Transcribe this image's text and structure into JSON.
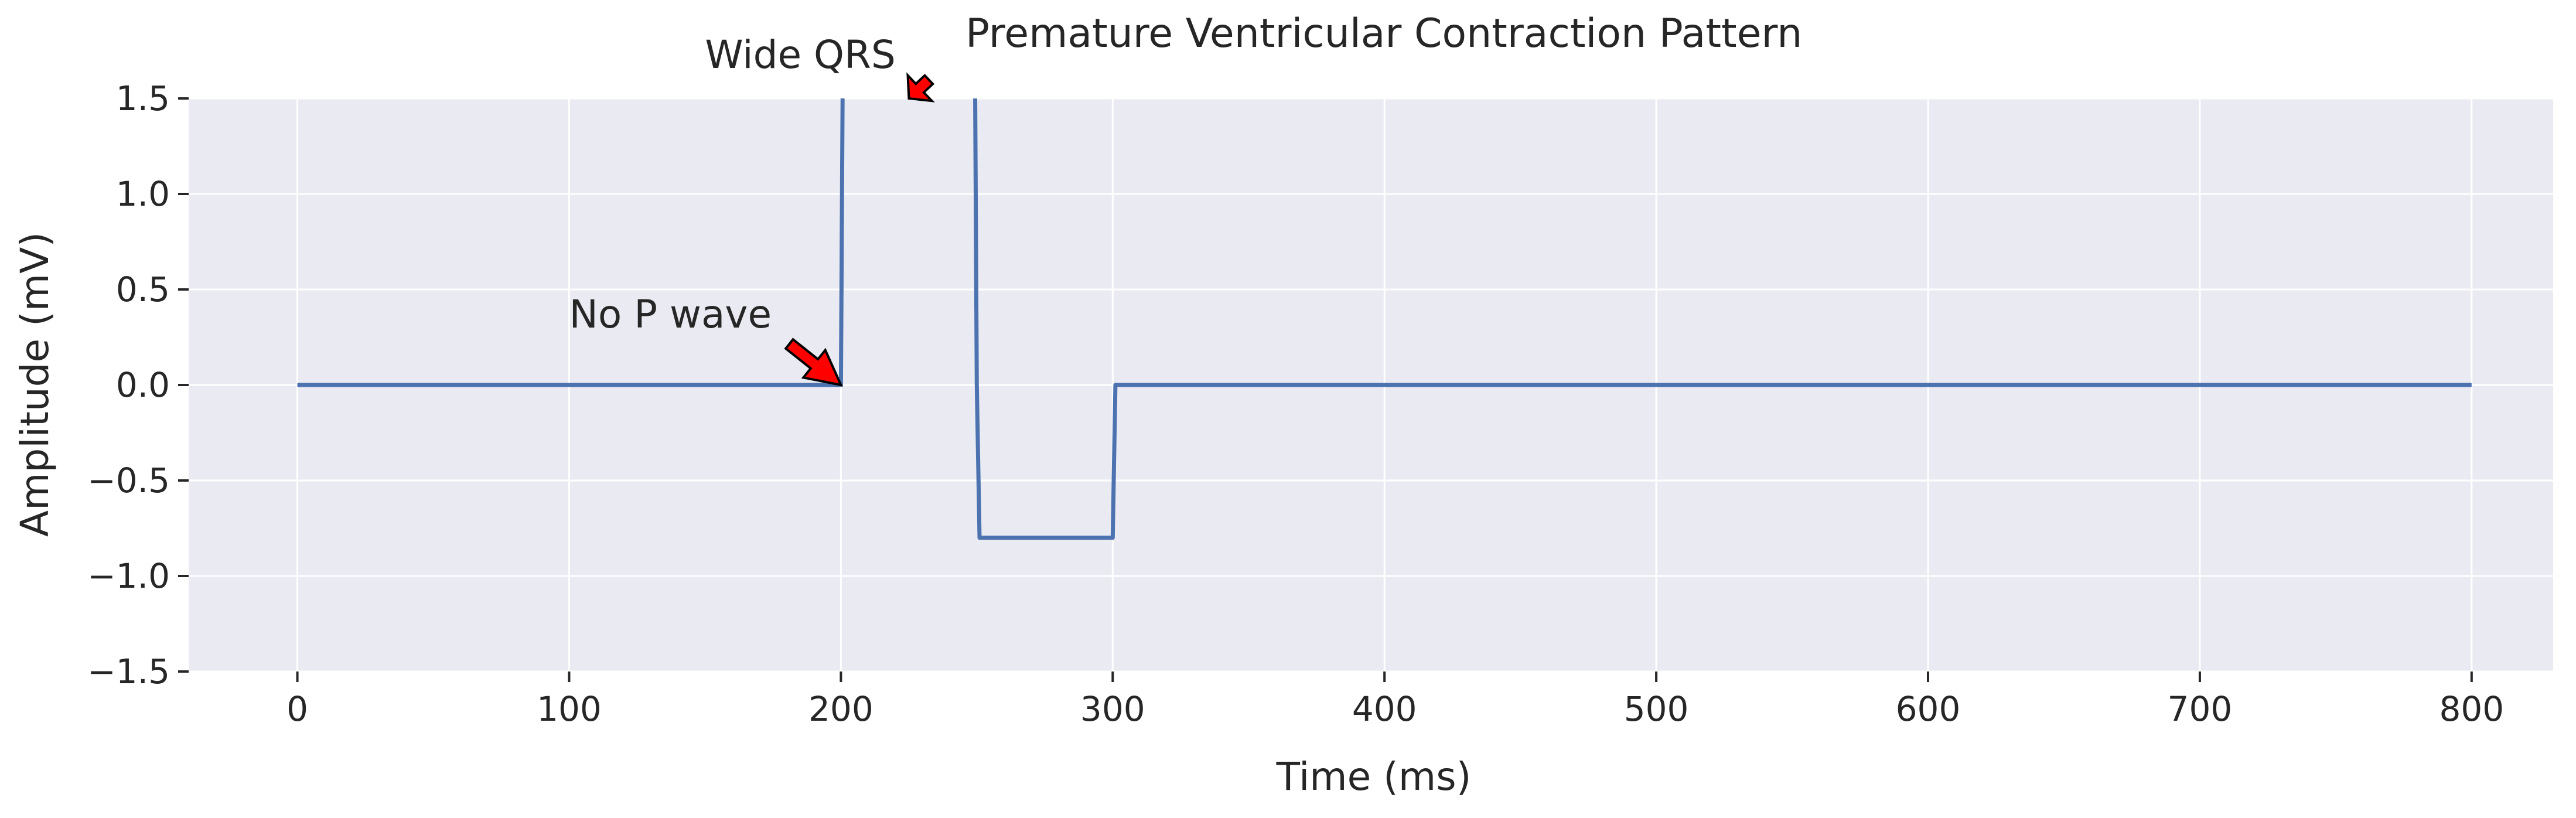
{
  "chart_data": {
    "type": "line",
    "title": "Premature Ventricular Contraction Pattern",
    "xlabel": "Time (ms)",
    "ylabel": "Amplitude (mV)",
    "xlim": [
      -40,
      830
    ],
    "ylim": [
      -1.5,
      1.5
    ],
    "xticks": [
      0,
      100,
      200,
      300,
      400,
      500,
      600,
      700,
      800
    ],
    "xtick_labels": [
      "0",
      "100",
      "200",
      "300",
      "400",
      "500",
      "600",
      "700",
      "800"
    ],
    "yticks": [
      1.5,
      1.0,
      0.5,
      0.0,
      -0.5,
      -1.0,
      -1.5
    ],
    "ytick_labels": [
      "1.5",
      "1.0",
      "0.5",
      "0.0",
      "−0.5",
      "−1.0",
      "−1.5"
    ],
    "grid": true,
    "line_color": "#4c72b0",
    "background_color": "#eaeaf2",
    "x": [
      0,
      200,
      201,
      249,
      250,
      251,
      299,
      300,
      301,
      800
    ],
    "y": [
      0,
      0,
      2.5,
      2.5,
      0,
      -0.8,
      -0.8,
      -0.8,
      0,
      0
    ],
    "annotations": [
      {
        "text": "No P wave",
        "text_x": 100,
        "text_y": 0.3,
        "target_x": 200,
        "target_y": 0,
        "arrow_color": "#ff0000"
      },
      {
        "text": "Wide QRS",
        "text_x": 150,
        "text_y": 1.66,
        "target_x": 225,
        "target_y": 1.5,
        "arrow_color": "#ff0000"
      }
    ]
  }
}
